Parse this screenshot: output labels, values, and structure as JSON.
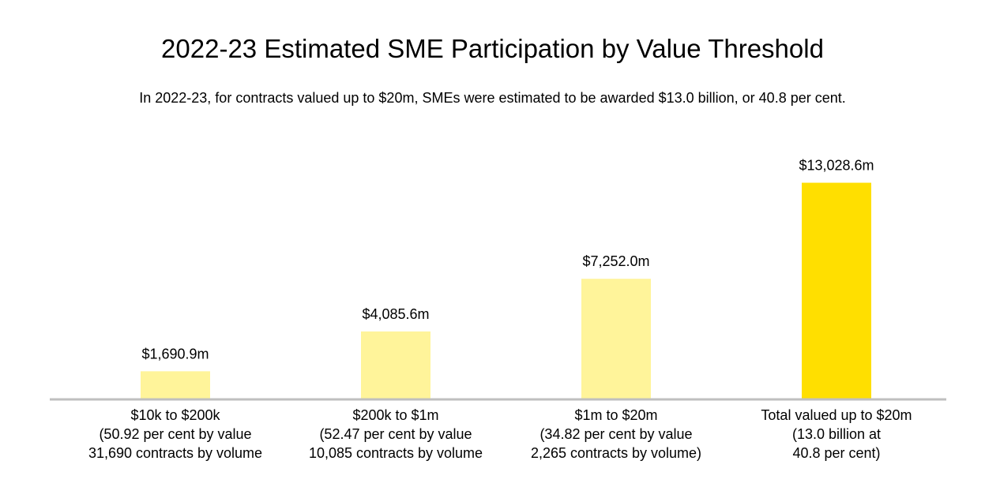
{
  "title": "2022-23 Estimated SME Participation by Value Threshold",
  "subtitle": "In 2022-23, for contracts valued up to $20m, SMEs were estimated to be awarded $13.0 billion, or 40.8 per cent.",
  "colors": {
    "bar": "#FFF49A",
    "bar_total": "#FFDF00",
    "axis": "#BFBFBF"
  },
  "chart_data": {
    "type": "bar",
    "title": "2022-23 Estimated SME Participation by Value Threshold",
    "xlabel": "",
    "ylabel": "",
    "ylim": [
      0,
      15000
    ],
    "grid": false,
    "categories": [
      "$10k to $200k\n(50.92 per cent by value\n31,690 contracts by volume",
      "$200k to $1m\n(52.47 per cent by value\n10,085 contracts by volume",
      "$1m to $20m\n(34.82 per cent by value\n2,265 contracts by volume)",
      "Total valued up to $20m\n(13.0 billion at\n40.8 per cent)"
    ],
    "values": [
      1690.9,
      4085.6,
      7252.0,
      13028.6
    ],
    "value_labels": [
      "$1,690.9m",
      "$4,085.6m",
      "$7,252.0m",
      "$13,028.6m"
    ]
  }
}
